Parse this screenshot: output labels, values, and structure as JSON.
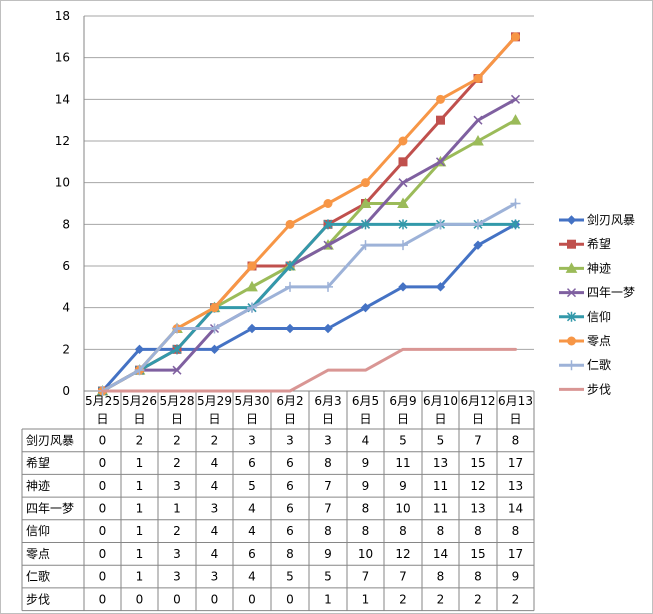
{
  "chart_data": {
    "type": "line",
    "categories": [
      "5月25日",
      "5月26日",
      "5月28日",
      "5月29日",
      "5月30日",
      "6月2日",
      "6月3日",
      "6月5日",
      "6月9日",
      "6月10日",
      "6月12日",
      "6月13日"
    ],
    "ylim": [
      0,
      18
    ],
    "yticks": [
      0,
      2,
      4,
      6,
      8,
      10,
      12,
      14,
      16,
      18
    ],
    "grid": true,
    "legend": "right",
    "data_table": true,
    "series": [
      {
        "name": "剑刃风暴",
        "color": "#4472C4",
        "marker": "diamond",
        "values": [
          0,
          2,
          2,
          2,
          3,
          3,
          3,
          4,
          5,
          5,
          7,
          8
        ]
      },
      {
        "name": "希望",
        "color": "#C0504D",
        "marker": "square",
        "values": [
          0,
          1,
          2,
          4,
          6,
          6,
          8,
          9,
          11,
          13,
          15,
          17
        ]
      },
      {
        "name": "神迹",
        "color": "#9BBB59",
        "marker": "triangle",
        "values": [
          0,
          1,
          3,
          4,
          5,
          6,
          7,
          9,
          9,
          11,
          12,
          13
        ]
      },
      {
        "name": "四年一梦",
        "color": "#7F60A0",
        "marker": "x",
        "values": [
          0,
          1,
          1,
          3,
          4,
          6,
          7,
          8,
          10,
          11,
          13,
          14
        ]
      },
      {
        "name": "信仰",
        "color": "#3399AA",
        "marker": "star",
        "values": [
          0,
          1,
          2,
          4,
          4,
          6,
          8,
          8,
          8,
          8,
          8,
          8
        ]
      },
      {
        "name": "零点",
        "color": "#F79646",
        "marker": "circle",
        "values": [
          0,
          1,
          3,
          4,
          6,
          8,
          9,
          10,
          12,
          14,
          15,
          17
        ]
      },
      {
        "name": "仁歌",
        "color": "#9DB2D8",
        "marker": "plus",
        "values": [
          0,
          1,
          3,
          3,
          4,
          5,
          5,
          7,
          7,
          8,
          8,
          9
        ]
      },
      {
        "name": "步伐",
        "color": "#D99694",
        "marker": "dash",
        "values": [
          0,
          0,
          0,
          0,
          0,
          0,
          1,
          1,
          2,
          2,
          2,
          2
        ]
      }
    ]
  }
}
